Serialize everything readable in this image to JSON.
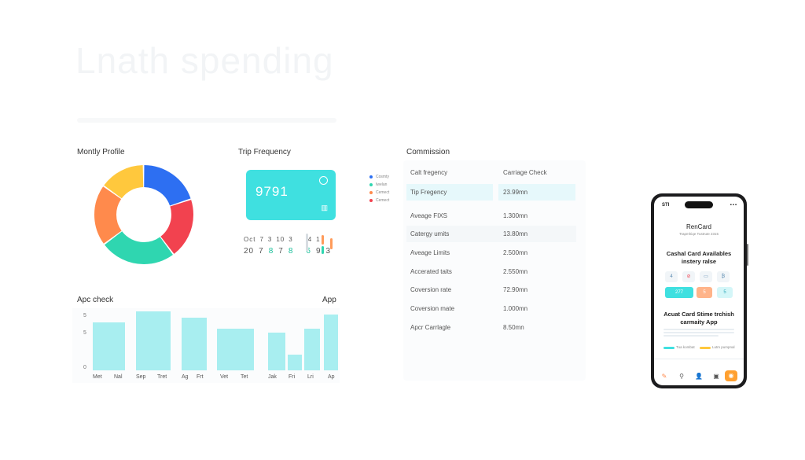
{
  "header": {
    "title": "Lnath spending"
  },
  "panels": {
    "profile_title": "Montly Profile",
    "trip_title": "Trip Frequency",
    "commission_title": "Commission",
    "apc_title": "Apc check",
    "app_label": "App"
  },
  "donut": {
    "segments": [
      {
        "value": 20,
        "color": "#2d6ff2"
      },
      {
        "value": 20,
        "color": "#f2424f"
      },
      {
        "value": 25,
        "color": "#2fd6b0"
      },
      {
        "value": 20,
        "color": "#ff8a4c"
      },
      {
        "value": 15,
        "color": "#ffc83d"
      }
    ]
  },
  "trip": {
    "card_number": "9791",
    "small_row": [
      "Oct",
      "7",
      "3",
      "10",
      "3",
      "",
      "4",
      "1"
    ],
    "big_row": [
      "20",
      "7",
      "8",
      "7",
      "8",
      "",
      "6",
      "9",
      "3"
    ],
    "legend": [
      {
        "label": "Cosmty",
        "color": "#2d6ff2"
      },
      {
        "label": "Iwelan",
        "color": "#2fd6b0"
      },
      {
        "label": "Cemect",
        "color": "#ff8a4c"
      },
      {
        "label": "Cemect",
        "color": "#f2424f"
      }
    ]
  },
  "commission": {
    "headers": [
      "Calt fregency",
      "Carriage Check"
    ],
    "rows": [
      {
        "label": "Tip Fregency",
        "value": "23.99mn"
      },
      {
        "label": "Aveage FIXS",
        "value": "1.300mn"
      },
      {
        "label": "Catergy umits",
        "value": "13.80mn"
      },
      {
        "label": "Aveage Limits",
        "value": "2.500mn"
      },
      {
        "label": "Accerated taits",
        "value": "2.550mn"
      },
      {
        "label": "Coversion rate",
        "value": "72.90mn"
      },
      {
        "label": "Coversion mate",
        "value": "1.000mn"
      },
      {
        "label": "Apcr Carrlagle",
        "value": "8.50mn"
      }
    ]
  },
  "bar_chart": {
    "yticks": [
      "5",
      "5",
      "0"
    ],
    "groups": [
      {
        "labels": [
          "Met",
          "Nal"
        ],
        "values": [
          4.6
        ]
      },
      {
        "labels": [
          "Sep",
          "Tret"
        ],
        "values": [
          5.6
        ]
      },
      {
        "labels": [
          "Ag",
          "Frt"
        ],
        "values": [
          5.0
        ]
      },
      {
        "labels": [
          "Vet",
          "Tet"
        ],
        "values": [
          4.0
        ]
      },
      {
        "labels": [
          "Jak",
          "Fri",
          "Lri",
          "Ap"
        ],
        "values": [
          3.6,
          1.5,
          4.0,
          5.3
        ]
      }
    ],
    "color": "#a8eef0"
  },
  "phone": {
    "time": "STI",
    "status": "▪▪▪",
    "app_name": "RenCard",
    "subtitle": "Trapmhiqe Tustrute 2315",
    "headline1": "Cashal Card Availables",
    "headline1b": "instery ralse",
    "tiles": [
      "4",
      "⊘",
      "▭",
      "₿"
    ],
    "btn1": "277",
    "btn2": "5",
    "btn3": "5",
    "headline2": "Acuat Card Stime trchish",
    "headline2b": "carmaity App",
    "legend1": "Tua kombat",
    "legend2": "Lutm pumpnal",
    "nav": [
      "✎",
      "⚲",
      "👤",
      "▣",
      "◉"
    ]
  }
}
